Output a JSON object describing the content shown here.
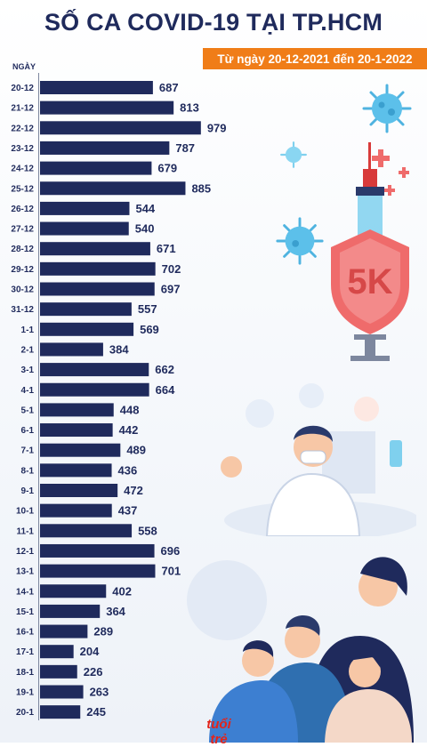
{
  "title": "SỐ CA COVID-19 TẠI TP.HCM",
  "subtitle": "Từ ngày 20-12-2021 đến 20-1-2022",
  "logo_text": "tuổi trẻ",
  "shield_text": "5K",
  "colors": {
    "bar": "#1f2a5c",
    "accent": "#f07d18",
    "shield": "#ef6b6b"
  },
  "chart_data": {
    "type": "bar",
    "orientation": "horizontal",
    "ylabel": "NGÀY",
    "categories": [
      "20-12",
      "21-12",
      "22-12",
      "23-12",
      "24-12",
      "25-12",
      "26-12",
      "27-12",
      "28-12",
      "29-12",
      "30-12",
      "31-12",
      "1-1",
      "2-1",
      "3-1",
      "4-1",
      "5-1",
      "6-1",
      "7-1",
      "8-1",
      "9-1",
      "10-1",
      "11-1",
      "12-1",
      "13-1",
      "14-1",
      "15-1",
      "16-1",
      "17-1",
      "18-1",
      "19-1",
      "20-1"
    ],
    "values": [
      687,
      813,
      979,
      787,
      679,
      885,
      544,
      540,
      671,
      702,
      697,
      557,
      569,
      384,
      662,
      664,
      448,
      442,
      489,
      436,
      472,
      437,
      558,
      696,
      701,
      402,
      364,
      289,
      204,
      226,
      263,
      245
    ],
    "xlim": [
      0,
      1000
    ],
    "grid": false,
    "legend": "none"
  }
}
